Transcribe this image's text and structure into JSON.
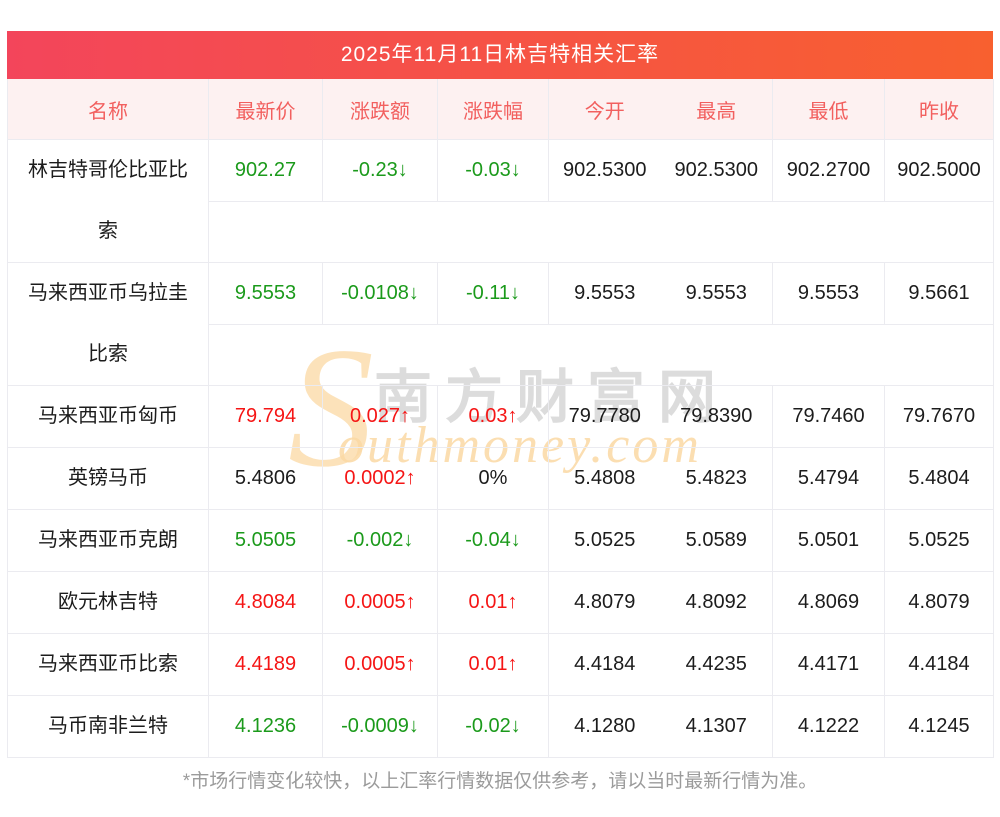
{
  "page": {
    "title": "2025年11月11日林吉特相关汇率",
    "footnote": "*市场行情变化较快，以上汇率行情数据仅供参考，请以当时最新行情为准。"
  },
  "table": {
    "columns": [
      "名称",
      "最新价",
      "涨跌额",
      "涨跌幅",
      "今开",
      "最高",
      "最低",
      "昨收"
    ],
    "rows": [
      {
        "name": "林吉特哥伦比亚比索",
        "tall": true,
        "latest": "902.27",
        "latest_dir": "down",
        "change": "-0.23↓",
        "change_dir": "down",
        "pct": "-0.03↓",
        "pct_dir": "down",
        "open": "902.5300",
        "high": "902.5300",
        "low": "902.2700",
        "prev": "902.5000"
      },
      {
        "name": "马来西亚币乌拉圭比索",
        "tall": true,
        "latest": "9.5553",
        "latest_dir": "down",
        "change": "-0.0108↓",
        "change_dir": "down",
        "pct": "-0.11↓",
        "pct_dir": "down",
        "open": "9.5553",
        "high": "9.5553",
        "low": "9.5553",
        "prev": "9.5661"
      },
      {
        "name": "马来西亚币匈币",
        "tall": false,
        "latest": "79.794",
        "latest_dir": "up",
        "change": "0.027↑",
        "change_dir": "up",
        "pct": "0.03↑",
        "pct_dir": "up",
        "open": "79.7780",
        "high": "79.8390",
        "low": "79.7460",
        "prev": "79.7670"
      },
      {
        "name": "英镑马币",
        "tall": false,
        "latest": "5.4806",
        "latest_dir": "flat",
        "change": "0.0002↑",
        "change_dir": "up",
        "pct": "0%",
        "pct_dir": "flat",
        "open": "5.4808",
        "high": "5.4823",
        "low": "5.4794",
        "prev": "5.4804"
      },
      {
        "name": "马来西亚币克朗",
        "tall": false,
        "latest": "5.0505",
        "latest_dir": "down",
        "change": "-0.002↓",
        "change_dir": "down",
        "pct": "-0.04↓",
        "pct_dir": "down",
        "open": "5.0525",
        "high": "5.0589",
        "low": "5.0501",
        "prev": "5.0525"
      },
      {
        "name": "欧元林吉特",
        "tall": false,
        "latest": "4.8084",
        "latest_dir": "up",
        "change": "0.0005↑",
        "change_dir": "up",
        "pct": "0.01↑",
        "pct_dir": "up",
        "open": "4.8079",
        "high": "4.8092",
        "low": "4.8069",
        "prev": "4.8079"
      },
      {
        "name": "马来西亚币比索",
        "tall": false,
        "latest": "4.4189",
        "latest_dir": "up",
        "change": "0.0005↑",
        "change_dir": "up",
        "pct": "0.01↑",
        "pct_dir": "up",
        "open": "4.4184",
        "high": "4.4235",
        "low": "4.4171",
        "prev": "4.4184"
      },
      {
        "name": "马币南非兰特",
        "tall": false,
        "latest": "4.1236",
        "latest_dir": "down",
        "change": "-0.0009↓",
        "change_dir": "down",
        "pct": "-0.02↓",
        "pct_dir": "down",
        "open": "4.1280",
        "high": "4.1307",
        "low": "4.1222",
        "prev": "4.1245"
      }
    ]
  },
  "watermark": {
    "s": "S",
    "cn": "南方财富网",
    "en": "outhmoney.com"
  },
  "colors": {
    "title_gradient_left": "#f3455b",
    "title_gradient_right": "#f8602f",
    "header_bg": "#fdf1f1",
    "header_text": "#f2605f",
    "up": "#f51515",
    "down": "#1b9a1b",
    "flat": "#1c1c1c",
    "border": "#ebebf0",
    "footnote_text": "#9b9b9b",
    "watermark_orange": "#fbd9a4",
    "watermark_gray": "rgba(185,185,185,0.5)"
  }
}
